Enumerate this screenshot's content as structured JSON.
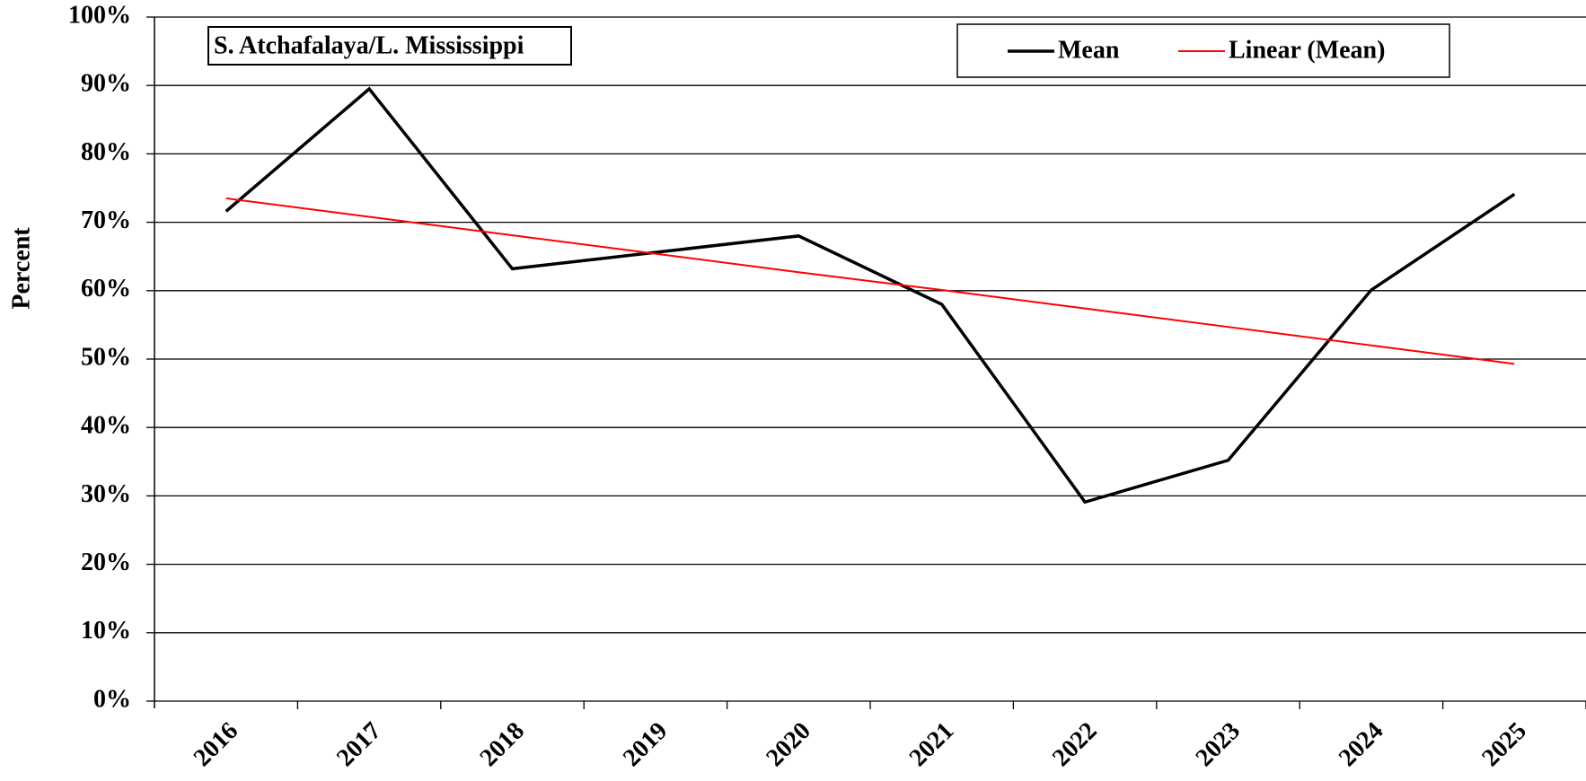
{
  "chart_data": {
    "type": "line",
    "title": "S. Atchafalaya/L.  Mississippi",
    "y_label": "Percent",
    "categories": [
      "2016",
      "2017",
      "2018",
      "2019",
      "2020",
      "2021",
      "2022",
      "2023",
      "2024",
      "2025"
    ],
    "series": [
      {
        "name": "Mean",
        "color": "#000000",
        "values": [
          71.6,
          89.5,
          63.2,
          65.6,
          68.0,
          58.0,
          29.1,
          35.2,
          60.1,
          74.1
        ]
      },
      {
        "name": "Linear (Mean)",
        "color": "#ff0000",
        "values": [
          73.5,
          70.8,
          68.1,
          65.4,
          62.7,
          60.1,
          57.4,
          54.7,
          52.0,
          49.3
        ]
      }
    ],
    "ylim": [
      0,
      100
    ],
    "yticks": [
      {
        "value": 0,
        "label": "0%"
      },
      {
        "value": 10,
        "label": "10%"
      },
      {
        "value": 20,
        "label": "20%"
      },
      {
        "value": 30,
        "label": "30%"
      },
      {
        "value": 40,
        "label": "40%"
      },
      {
        "value": 50,
        "label": "50%"
      },
      {
        "value": 60,
        "label": "60%"
      },
      {
        "value": 70,
        "label": "70%"
      },
      {
        "value": 80,
        "label": "80%"
      },
      {
        "value": 90,
        "label": "90%"
      },
      {
        "value": 100,
        "label": "100%"
      }
    ],
    "grid": true,
    "legend": "top-right"
  }
}
